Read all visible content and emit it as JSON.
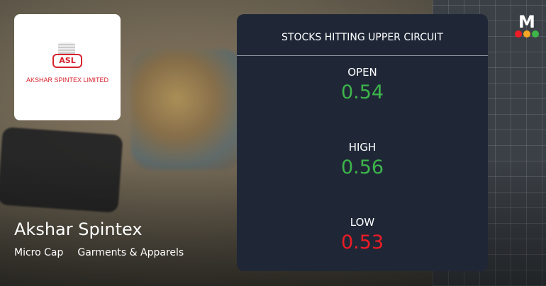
{
  "company": {
    "name": "Akshar Spintex",
    "logo_text": "AKSHAR SPINTEX LIMITED",
    "logo_mark": "ASL",
    "cap": "Micro Cap",
    "sector": "Garments & Apparels"
  },
  "card": {
    "title": "STOCKS HITTING UPPER CIRCUIT",
    "stats": [
      {
        "label": "OPEN",
        "value": "0.54",
        "color": "#3db54a"
      },
      {
        "label": "HIGH",
        "value": "0.56",
        "color": "#3db54a"
      },
      {
        "label": "LOW",
        "value": "0.53",
        "color": "#ee1c25"
      }
    ]
  },
  "brand": {
    "letter": "M",
    "dot_colors": [
      "#ee1c25",
      "#f5a623",
      "#3db54a"
    ]
  }
}
